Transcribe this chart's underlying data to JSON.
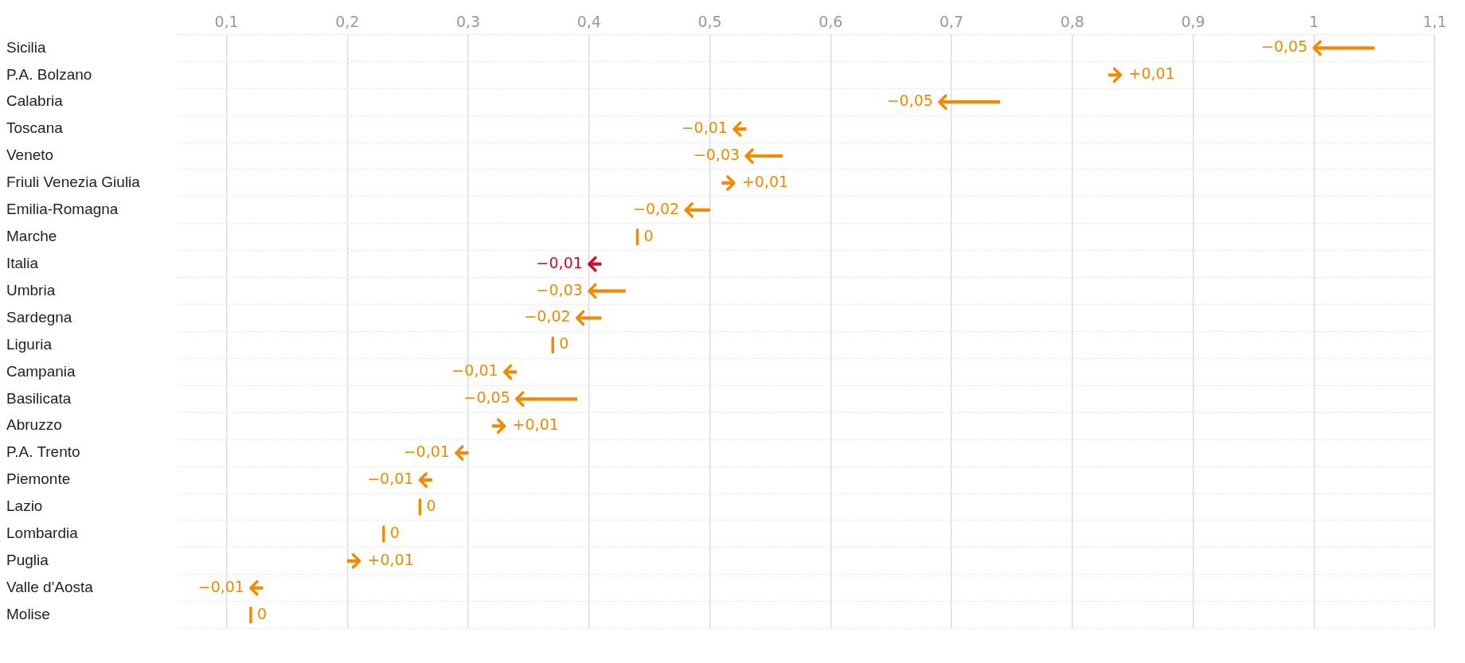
{
  "chart_data": {
    "type": "bar",
    "orientation": "horizontal",
    "categories": [
      "Sicilia",
      "P.A. Bolzano",
      "Calabria",
      "Toscana",
      "Veneto",
      "Friuli Venezia Giulia",
      "Emilia-Romagna",
      "Marche",
      "Italia",
      "Umbria",
      "Sardegna",
      "Liguria",
      "Campania",
      "Basilicata",
      "Abruzzo",
      "P.A. Trento",
      "Piemonte",
      "Lazio",
      "Lombardia",
      "Puglia",
      "Valle d'Aosta",
      "Molise"
    ],
    "base": [
      1.05,
      0.83,
      0.74,
      0.53,
      0.56,
      0.51,
      0.5,
      0.44,
      0.41,
      0.43,
      0.41,
      0.37,
      0.34,
      0.39,
      0.32,
      0.3,
      0.27,
      0.26,
      0.23,
      0.2,
      0.13,
      0.12
    ],
    "values": [
      -0.05,
      0.01,
      -0.05,
      -0.01,
      -0.03,
      0.01,
      -0.02,
      0,
      -0.01,
      -0.03,
      -0.02,
      0,
      -0.01,
      -0.05,
      0.01,
      -0.01,
      -0.01,
      0,
      0,
      0.01,
      -0.01,
      0
    ],
    "value_labels": [
      "−0,05",
      "+0,01",
      "−0,05",
      "−0,01",
      "−0,03",
      "+0,01",
      "−0,02",
      "0",
      "−0,01",
      "−0,03",
      "−0,02",
      "0",
      "−0,01",
      "−0,05",
      "+0,01",
      "−0,01",
      "−0,01",
      "0",
      "0",
      "+0,01",
      "−0,01",
      "0"
    ],
    "colors": [
      "#f08a00",
      "#f08a00",
      "#f08a00",
      "#f08a00",
      "#f08a00",
      "#f08a00",
      "#f08a00",
      "#f08a00",
      "#c8102e",
      "#f08a00",
      "#f08a00",
      "#f08a00",
      "#f08a00",
      "#f08a00",
      "#f08a00",
      "#f08a00",
      "#f08a00",
      "#f08a00",
      "#f08a00",
      "#f08a00",
      "#f08a00",
      "#f08a00"
    ],
    "xlim": [
      0.06,
      1.1
    ],
    "xticks": [
      {
        "value": 0.1,
        "label": "0,1"
      },
      {
        "value": 0.2,
        "label": "0,2"
      },
      {
        "value": 0.3,
        "label": "0,3"
      },
      {
        "value": 0.4,
        "label": "0,4"
      },
      {
        "value": 0.5,
        "label": "0,5"
      },
      {
        "value": 0.6,
        "label": "0,6"
      },
      {
        "value": 0.7,
        "label": "0,7"
      },
      {
        "value": 0.8,
        "label": "0,8"
      },
      {
        "value": 0.9,
        "label": "0,9"
      },
      {
        "value": 1,
        "label": "1"
      },
      {
        "value": 1.1,
        "label": "1,1"
      }
    ],
    "grid": true,
    "legend": false
  }
}
